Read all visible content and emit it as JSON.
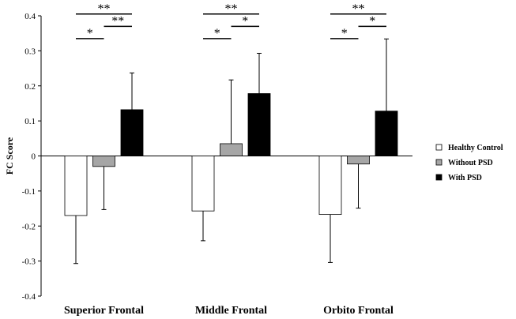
{
  "chart_data": {
    "type": "bar",
    "title": "",
    "xlabel": "",
    "ylabel": "FC Score",
    "ylim": [
      -0.4,
      0.4
    ],
    "yticks": [
      "0.4",
      "0.3",
      "0.2",
      "0.1",
      "0",
      "-0.1",
      "-0.2",
      "-0.3",
      "-0.4"
    ],
    "categories": [
      "Superior Frontal",
      "Middle Frontal",
      "Orbito Frontal"
    ],
    "series": [
      {
        "name": "Healthy Control",
        "color": "#ffffff",
        "values": [
          -0.17,
          -0.157,
          -0.167
        ],
        "errors": [
          0.137,
          0.085,
          0.137
        ]
      },
      {
        "name": "Without PSD",
        "color": "#a6a6a6",
        "values": [
          -0.03,
          0.035,
          -0.023
        ],
        "errors": [
          0.123,
          0.182,
          0.126
        ]
      },
      {
        "name": "With PSD",
        "color": "#000000",
        "values": [
          0.132,
          0.178,
          0.128
        ],
        "errors": [
          0.105,
          0.115,
          0.206
        ]
      }
    ],
    "significance": [
      {
        "category": 0,
        "from": 0,
        "to": 2,
        "y": 0.405,
        "label": "**"
      },
      {
        "category": 0,
        "from": 1,
        "to": 2,
        "y": 0.37,
        "label": "**"
      },
      {
        "category": 0,
        "from": 0,
        "to": 1,
        "y": 0.335,
        "label": "*"
      },
      {
        "category": 1,
        "from": 0,
        "to": 2,
        "y": 0.405,
        "label": "**"
      },
      {
        "category": 1,
        "from": 1,
        "to": 2,
        "y": 0.37,
        "label": "*"
      },
      {
        "category": 1,
        "from": 0,
        "to": 1,
        "y": 0.335,
        "label": "*"
      },
      {
        "category": 2,
        "from": 0,
        "to": 2,
        "y": 0.405,
        "label": "**"
      },
      {
        "category": 2,
        "from": 1,
        "to": 2,
        "y": 0.37,
        "label": "*"
      },
      {
        "category": 2,
        "from": 0,
        "to": 1,
        "y": 0.335,
        "label": "*"
      }
    ],
    "grid": false,
    "legend_position": "right"
  }
}
